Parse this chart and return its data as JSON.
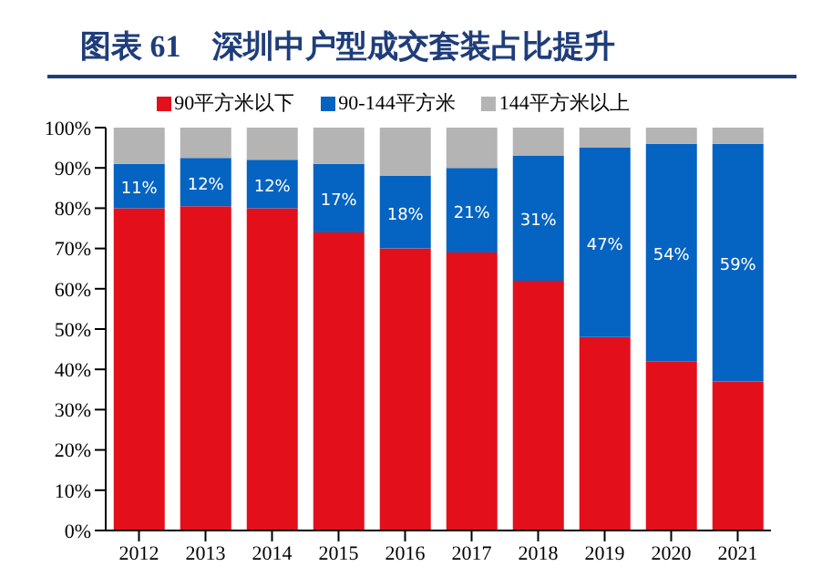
{
  "chart_data": {
    "type": "bar",
    "title": "图表 61　深圳中户型成交套装占比提升",
    "stacked": true,
    "legend": "top",
    "grid": false,
    "categories": [
      "2012",
      "2013",
      "2014",
      "2015",
      "2016",
      "2017",
      "2018",
      "2019",
      "2020",
      "2021"
    ],
    "series": [
      {
        "name": "90平方米以下",
        "color": "#e3101c",
        "values": [
          80,
          80.5,
          80,
          74,
          70,
          69,
          62,
          48,
          42,
          37
        ]
      },
      {
        "name": "90-144平方米",
        "color": "#0563c1",
        "values": [
          11,
          12,
          12,
          17,
          18,
          21,
          31,
          47,
          54,
          59
        ],
        "value_labels": [
          "11%",
          "12%",
          "12%",
          "17%",
          "18%",
          "21%",
          "31%",
          "47%",
          "54%",
          "59%"
        ]
      },
      {
        "name": "144平方米以上",
        "color": "#b4b4b4",
        "values": [
          9,
          7.5,
          8,
          9,
          12,
          10,
          7,
          5,
          4,
          4
        ]
      }
    ],
    "ylim": [
      0,
      100
    ],
    "yticks": [
      {
        "value": 0,
        "label": "0%"
      },
      {
        "value": 10,
        "label": "10%"
      },
      {
        "value": 20,
        "label": "20%"
      },
      {
        "value": 30,
        "label": "30%"
      },
      {
        "value": 40,
        "label": "40%"
      },
      {
        "value": 50,
        "label": "50%"
      },
      {
        "value": 60,
        "label": "60%"
      },
      {
        "value": 70,
        "label": "70%"
      },
      {
        "value": 80,
        "label": "80%"
      },
      {
        "value": 90,
        "label": "90%"
      },
      {
        "value": 100,
        "label": "100%"
      }
    ]
  }
}
